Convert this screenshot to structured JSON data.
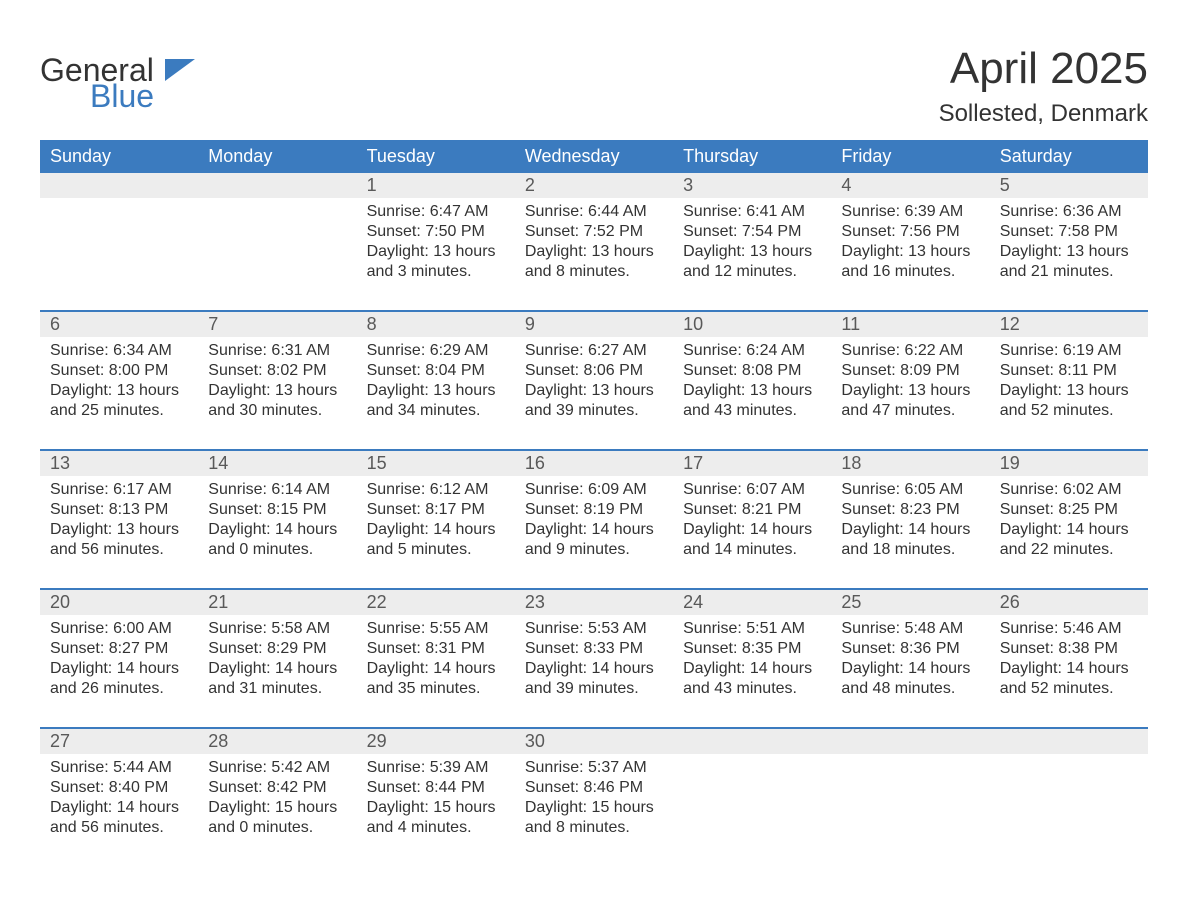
{
  "logo": {
    "general": "General",
    "blue": "Blue"
  },
  "title": "April 2025",
  "location": "Sollested, Denmark",
  "colors": {
    "header_bg": "#3b7bbf",
    "header_text": "#ffffff",
    "daynum_bg": "#ededed",
    "daynum_text": "#595959",
    "body_text": "#333333",
    "accent": "#3b7bbf",
    "page_bg": "#ffffff"
  },
  "days_of_week": [
    "Sunday",
    "Monday",
    "Tuesday",
    "Wednesday",
    "Thursday",
    "Friday",
    "Saturday"
  ],
  "weeks": [
    [
      {
        "num": "",
        "sunrise": "",
        "sunset": "",
        "daylight": ""
      },
      {
        "num": "",
        "sunrise": "",
        "sunset": "",
        "daylight": ""
      },
      {
        "num": "1",
        "sunrise": "Sunrise: 6:47 AM",
        "sunset": "Sunset: 7:50 PM",
        "daylight": "Daylight: 13 hours and 3 minutes."
      },
      {
        "num": "2",
        "sunrise": "Sunrise: 6:44 AM",
        "sunset": "Sunset: 7:52 PM",
        "daylight": "Daylight: 13 hours and 8 minutes."
      },
      {
        "num": "3",
        "sunrise": "Sunrise: 6:41 AM",
        "sunset": "Sunset: 7:54 PM",
        "daylight": "Daylight: 13 hours and 12 minutes."
      },
      {
        "num": "4",
        "sunrise": "Sunrise: 6:39 AM",
        "sunset": "Sunset: 7:56 PM",
        "daylight": "Daylight: 13 hours and 16 minutes."
      },
      {
        "num": "5",
        "sunrise": "Sunrise: 6:36 AM",
        "sunset": "Sunset: 7:58 PM",
        "daylight": "Daylight: 13 hours and 21 minutes."
      }
    ],
    [
      {
        "num": "6",
        "sunrise": "Sunrise: 6:34 AM",
        "sunset": "Sunset: 8:00 PM",
        "daylight": "Daylight: 13 hours and 25 minutes."
      },
      {
        "num": "7",
        "sunrise": "Sunrise: 6:31 AM",
        "sunset": "Sunset: 8:02 PM",
        "daylight": "Daylight: 13 hours and 30 minutes."
      },
      {
        "num": "8",
        "sunrise": "Sunrise: 6:29 AM",
        "sunset": "Sunset: 8:04 PM",
        "daylight": "Daylight: 13 hours and 34 minutes."
      },
      {
        "num": "9",
        "sunrise": "Sunrise: 6:27 AM",
        "sunset": "Sunset: 8:06 PM",
        "daylight": "Daylight: 13 hours and 39 minutes."
      },
      {
        "num": "10",
        "sunrise": "Sunrise: 6:24 AM",
        "sunset": "Sunset: 8:08 PM",
        "daylight": "Daylight: 13 hours and 43 minutes."
      },
      {
        "num": "11",
        "sunrise": "Sunrise: 6:22 AM",
        "sunset": "Sunset: 8:09 PM",
        "daylight": "Daylight: 13 hours and 47 minutes."
      },
      {
        "num": "12",
        "sunrise": "Sunrise: 6:19 AM",
        "sunset": "Sunset: 8:11 PM",
        "daylight": "Daylight: 13 hours and 52 minutes."
      }
    ],
    [
      {
        "num": "13",
        "sunrise": "Sunrise: 6:17 AM",
        "sunset": "Sunset: 8:13 PM",
        "daylight": "Daylight: 13 hours and 56 minutes."
      },
      {
        "num": "14",
        "sunrise": "Sunrise: 6:14 AM",
        "sunset": "Sunset: 8:15 PM",
        "daylight": "Daylight: 14 hours and 0 minutes."
      },
      {
        "num": "15",
        "sunrise": "Sunrise: 6:12 AM",
        "sunset": "Sunset: 8:17 PM",
        "daylight": "Daylight: 14 hours and 5 minutes."
      },
      {
        "num": "16",
        "sunrise": "Sunrise: 6:09 AM",
        "sunset": "Sunset: 8:19 PM",
        "daylight": "Daylight: 14 hours and 9 minutes."
      },
      {
        "num": "17",
        "sunrise": "Sunrise: 6:07 AM",
        "sunset": "Sunset: 8:21 PM",
        "daylight": "Daylight: 14 hours and 14 minutes."
      },
      {
        "num": "18",
        "sunrise": "Sunrise: 6:05 AM",
        "sunset": "Sunset: 8:23 PM",
        "daylight": "Daylight: 14 hours and 18 minutes."
      },
      {
        "num": "19",
        "sunrise": "Sunrise: 6:02 AM",
        "sunset": "Sunset: 8:25 PM",
        "daylight": "Daylight: 14 hours and 22 minutes."
      }
    ],
    [
      {
        "num": "20",
        "sunrise": "Sunrise: 6:00 AM",
        "sunset": "Sunset: 8:27 PM",
        "daylight": "Daylight: 14 hours and 26 minutes."
      },
      {
        "num": "21",
        "sunrise": "Sunrise: 5:58 AM",
        "sunset": "Sunset: 8:29 PM",
        "daylight": "Daylight: 14 hours and 31 minutes."
      },
      {
        "num": "22",
        "sunrise": "Sunrise: 5:55 AM",
        "sunset": "Sunset: 8:31 PM",
        "daylight": "Daylight: 14 hours and 35 minutes."
      },
      {
        "num": "23",
        "sunrise": "Sunrise: 5:53 AM",
        "sunset": "Sunset: 8:33 PM",
        "daylight": "Daylight: 14 hours and 39 minutes."
      },
      {
        "num": "24",
        "sunrise": "Sunrise: 5:51 AM",
        "sunset": "Sunset: 8:35 PM",
        "daylight": "Daylight: 14 hours and 43 minutes."
      },
      {
        "num": "25",
        "sunrise": "Sunrise: 5:48 AM",
        "sunset": "Sunset: 8:36 PM",
        "daylight": "Daylight: 14 hours and 48 minutes."
      },
      {
        "num": "26",
        "sunrise": "Sunrise: 5:46 AM",
        "sunset": "Sunset: 8:38 PM",
        "daylight": "Daylight: 14 hours and 52 minutes."
      }
    ],
    [
      {
        "num": "27",
        "sunrise": "Sunrise: 5:44 AM",
        "sunset": "Sunset: 8:40 PM",
        "daylight": "Daylight: 14 hours and 56 minutes."
      },
      {
        "num": "28",
        "sunrise": "Sunrise: 5:42 AM",
        "sunset": "Sunset: 8:42 PM",
        "daylight": "Daylight: 15 hours and 0 minutes."
      },
      {
        "num": "29",
        "sunrise": "Sunrise: 5:39 AM",
        "sunset": "Sunset: 8:44 PM",
        "daylight": "Daylight: 15 hours and 4 minutes."
      },
      {
        "num": "30",
        "sunrise": "Sunrise: 5:37 AM",
        "sunset": "Sunset: 8:46 PM",
        "daylight": "Daylight: 15 hours and 8 minutes."
      },
      {
        "num": "",
        "sunrise": "",
        "sunset": "",
        "daylight": ""
      },
      {
        "num": "",
        "sunrise": "",
        "sunset": "",
        "daylight": ""
      },
      {
        "num": "",
        "sunrise": "",
        "sunset": "",
        "daylight": ""
      }
    ]
  ]
}
